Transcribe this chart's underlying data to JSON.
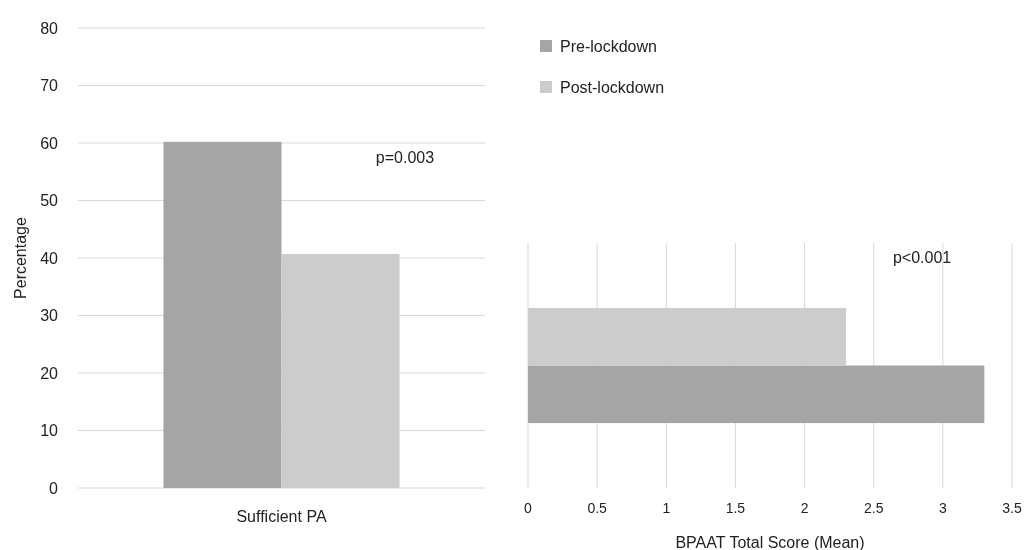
{
  "chart_data": [
    {
      "type": "bar",
      "ylabel": "Percentage",
      "categories": [
        "Sufficient PA"
      ],
      "ylim": [
        0,
        80
      ],
      "yticks": [
        0,
        10,
        20,
        30,
        40,
        50,
        60,
        70,
        80
      ],
      "grid": "y",
      "legend": "right",
      "annotations": [
        "p=0.003"
      ],
      "series": [
        {
          "name": "Pre-lockdown",
          "color": "#a5a5a5",
          "values": [
            60.2
          ]
        },
        {
          "name": "Post-lockdown",
          "color": "#cccccc",
          "values": [
            40.7
          ]
        }
      ]
    },
    {
      "type": "bar",
      "orientation": "horizontal",
      "xlabel": "BPAAT Total Score (Mean)",
      "categories": [
        null
      ],
      "xlim": [
        0,
        3.5
      ],
      "xticks": [
        0,
        0.5,
        1,
        1.5,
        2,
        2.5,
        3,
        3.5
      ],
      "grid": "x",
      "annotations": [
        "p<0.001"
      ],
      "series": [
        {
          "color": "#a5a5a5",
          "values": [
            3.3
          ]
        },
        {
          "color": "#cccccc",
          "values": [
            2.3
          ]
        }
      ]
    }
  ]
}
